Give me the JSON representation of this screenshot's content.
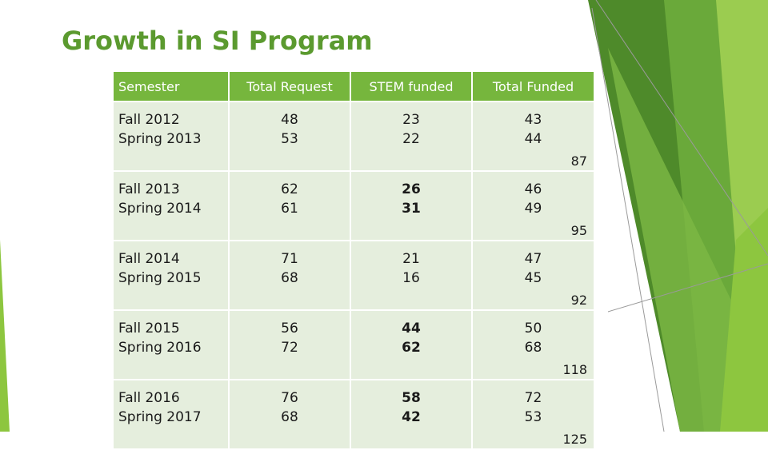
{
  "title": "Growth in SI Program",
  "colors": {
    "title": "#5b9a2f",
    "header_fill": "#76b63d",
    "cell_fill": "#e5eedd",
    "accent_dark": "#4e8a2a",
    "accent_light": "#9bcc50"
  },
  "table": {
    "headers": [
      "Semester",
      "Total Request",
      "STEM funded",
      "Total Funded"
    ],
    "rows": [
      {
        "semesters": [
          "Fall 2012",
          "Spring 2013"
        ],
        "requests": [
          "48",
          "53"
        ],
        "stem": [
          "23",
          "22"
        ],
        "funded": [
          "43",
          "44"
        ],
        "total": "87"
      },
      {
        "semesters": [
          "Fall 2013",
          "Spring 2014"
        ],
        "requests": [
          "62",
          "61"
        ],
        "stem": [
          "26",
          "31"
        ],
        "funded": [
          "46",
          "49"
        ],
        "total": "95"
      },
      {
        "semesters": [
          "Fall 2014",
          "Spring 2015"
        ],
        "requests": [
          "71",
          "68"
        ],
        "stem": [
          "21",
          "16"
        ],
        "funded": [
          "47",
          "45"
        ],
        "total": "92"
      },
      {
        "semesters": [
          "Fall 2015",
          "Spring 2016"
        ],
        "requests": [
          "56",
          "72"
        ],
        "stem": [
          "44",
          "62"
        ],
        "funded": [
          "50",
          "68"
        ],
        "total": "118"
      },
      {
        "semesters": [
          "Fall 2016",
          "Spring 2017"
        ],
        "requests": [
          "76",
          "68"
        ],
        "stem": [
          "58",
          "42"
        ],
        "funded": [
          "72",
          "53"
        ],
        "total": "125"
      }
    ]
  }
}
